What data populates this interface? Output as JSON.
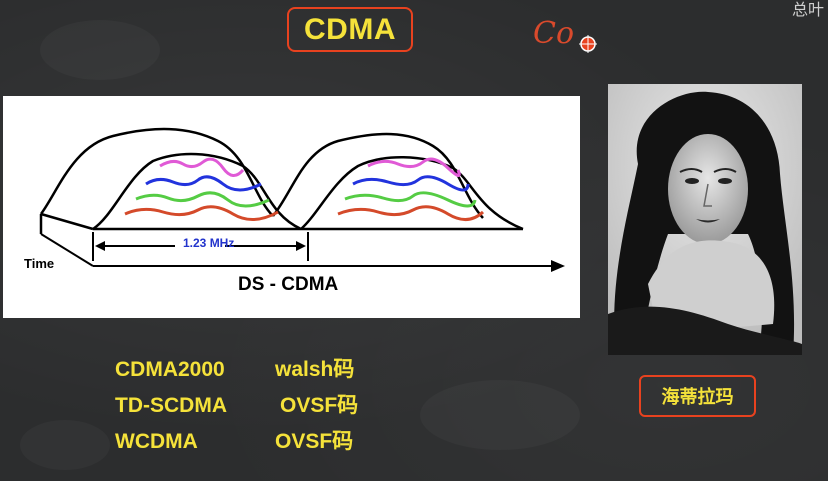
{
  "title": "CDMA",
  "annotation": "Co",
  "corner_text": "总叶",
  "diagram": {
    "bandwidth_label": "1.23 MHz",
    "time_label": "Time",
    "caption": "DS - CDMA",
    "colors": {
      "signal_outline": "#000000",
      "magenta": "#e05ad6",
      "blue": "#2233dd",
      "green": "#55cc44",
      "red": "#d44a2a",
      "label_blue": "#2233cc"
    }
  },
  "codes": [
    {
      "system": "CDMA2000",
      "code": "walsh码"
    },
    {
      "system": "TD-SCDMA",
      "code": "OVSF码"
    },
    {
      "system": "WCDMA",
      "code": "OVSF码"
    }
  ],
  "portrait_name": "海蒂拉玛",
  "colors": {
    "board": "#2c2d2e",
    "highlight": "#f5e23a",
    "accent_red": "#e8421f"
  }
}
